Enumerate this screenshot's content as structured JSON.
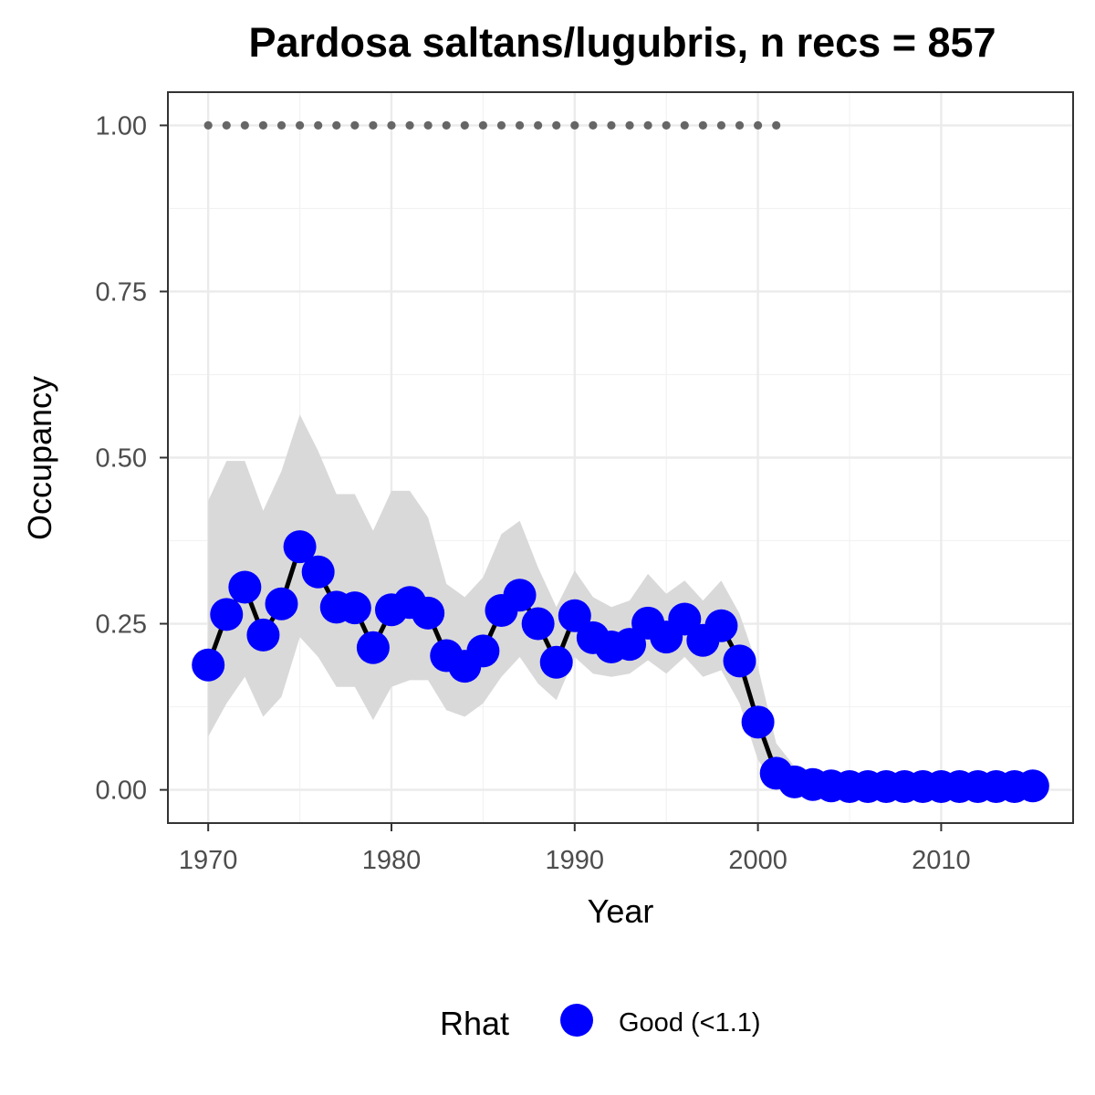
{
  "chart_data": {
    "type": "line",
    "title": "Pardosa saltans/lugubris, n recs = 857",
    "xlabel": "Year",
    "ylabel": "Occupancy",
    "xlim": [
      1967.8,
      2017.2
    ],
    "ylim": [
      -0.05,
      1.05
    ],
    "x_ticks": [
      1970,
      1980,
      1990,
      2000,
      2010
    ],
    "x_tick_labels": [
      "1970",
      "1980",
      "1990",
      "2000",
      "2010"
    ],
    "y_ticks": [
      0,
      0.25,
      0.5,
      0.75,
      1.0
    ],
    "y_tick_labels": [
      "0.00",
      "0.25",
      "0.50",
      "0.75",
      "1.00"
    ],
    "grid": true,
    "legend": {
      "position": "bottom",
      "title": "Rhat",
      "items": [
        {
          "label": "Good (<1.1)",
          "color": "#0000ff"
        }
      ]
    },
    "colors": {
      "points": "#0000ff",
      "line": "#000000",
      "ribbon": "#d9d9d9",
      "reference_dots": "#666666"
    },
    "years": [
      1970,
      1971,
      1972,
      1973,
      1974,
      1975,
      1976,
      1977,
      1978,
      1979,
      1980,
      1981,
      1982,
      1983,
      1984,
      1985,
      1986,
      1987,
      1988,
      1989,
      1990,
      1991,
      1992,
      1993,
      1994,
      1995,
      1996,
      1997,
      1998,
      1999,
      2000,
      2001,
      2002,
      2003,
      2004,
      2005,
      2006,
      2007,
      2008,
      2009,
      2010,
      2011,
      2012,
      2013,
      2014,
      2015
    ],
    "series": [
      {
        "name": "Good (<1.1)",
        "values": [
          0.188,
          0.264,
          0.305,
          0.233,
          0.28,
          0.366,
          0.328,
          0.275,
          0.274,
          0.214,
          0.271,
          0.282,
          0.266,
          0.202,
          0.186,
          0.209,
          0.27,
          0.293,
          0.25,
          0.192,
          0.262,
          0.229,
          0.215,
          0.219,
          0.251,
          0.23,
          0.257,
          0.225,
          0.247,
          0.194,
          0.102,
          0.025,
          0.012,
          0.008,
          0.006,
          0.005,
          0.005,
          0.005,
          0.005,
          0.005,
          0.005,
          0.005,
          0.005,
          0.005,
          0.005,
          0.006
        ],
        "lower": [
          0.08,
          0.13,
          0.17,
          0.11,
          0.14,
          0.23,
          0.2,
          0.155,
          0.155,
          0.105,
          0.155,
          0.165,
          0.165,
          0.12,
          0.11,
          0.13,
          0.17,
          0.2,
          0.16,
          0.135,
          0.2,
          0.175,
          0.17,
          0.175,
          0.195,
          0.175,
          0.2,
          0.17,
          0.18,
          0.13,
          0.045,
          0.005,
          0.0,
          0.0,
          0.0,
          0.0,
          0.0,
          0.0,
          0.0,
          0.0,
          0.0,
          0.0,
          0.0,
          0.0,
          0.0,
          0.0
        ],
        "upper": [
          0.435,
          0.495,
          0.495,
          0.42,
          0.48,
          0.565,
          0.51,
          0.445,
          0.445,
          0.39,
          0.45,
          0.45,
          0.41,
          0.31,
          0.29,
          0.32,
          0.385,
          0.405,
          0.335,
          0.275,
          0.33,
          0.29,
          0.275,
          0.285,
          0.325,
          0.295,
          0.315,
          0.285,
          0.315,
          0.265,
          0.185,
          0.07,
          0.035,
          0.025,
          0.02,
          0.02,
          0.02,
          0.02,
          0.02,
          0.02,
          0.02,
          0.02,
          0.02,
          0.02,
          0.02,
          0.02
        ]
      }
    ],
    "reference_dots": {
      "y": 1.0,
      "x": [
        1970,
        1971,
        1972,
        1973,
        1974,
        1975,
        1976,
        1977,
        1978,
        1979,
        1980,
        1981,
        1982,
        1983,
        1984,
        1985,
        1986,
        1987,
        1988,
        1989,
        1990,
        1991,
        1992,
        1993,
        1994,
        1995,
        1996,
        1997,
        1998,
        1999,
        2000,
        2001
      ]
    }
  }
}
